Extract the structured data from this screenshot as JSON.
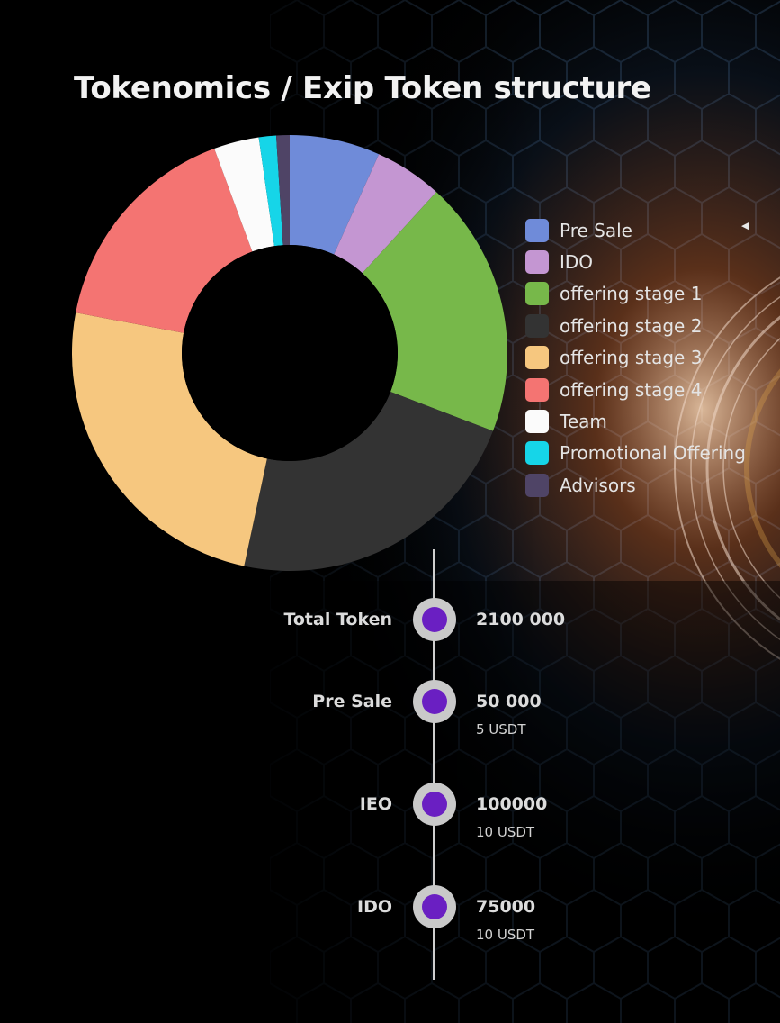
{
  "chart_data": {
    "type": "pie",
    "title": "Tokenomics / Exip Token structure",
    "donut": true,
    "legend_position": "right",
    "series": [
      {
        "name": "Pre Sale",
        "value": 6.8,
        "color": "#6f8bd9"
      },
      {
        "name": "IDO",
        "value": 5.1,
        "color": "#c496d2"
      },
      {
        "name": "offering stage 1",
        "value": 19.3,
        "color": "#77b84a"
      },
      {
        "name": "offering stage 2",
        "value": 22.8,
        "color": "#333333"
      },
      {
        "name": "offering stage 3",
        "value": 24.9,
        "color": "#f6c77f"
      },
      {
        "name": "offering stage 4",
        "value": 16.6,
        "color": "#f47472"
      },
      {
        "name": "Team",
        "value": 3.4,
        "color": "#fbfbfb"
      },
      {
        "name": "Promotional Offering",
        "value": 1.3,
        "color": "#16d5e8"
      },
      {
        "name": "Advisors",
        "value": 1.0,
        "color": "#4f4466"
      }
    ]
  },
  "timeline": {
    "items": [
      {
        "label": "Total Token",
        "value": "2100 000",
        "price": ""
      },
      {
        "label": "Pre Sale",
        "value": "50 000",
        "price": "5 USDT"
      },
      {
        "label": "IEO",
        "value": "100000",
        "price": "10 USDT"
      },
      {
        "label": "IDO",
        "value": "75000",
        "price": "10 USDT"
      }
    ]
  },
  "colors": {
    "node_accent": "#6a1fc2",
    "node_ring": "#c9c9c9",
    "line": "#cfcfcf"
  }
}
